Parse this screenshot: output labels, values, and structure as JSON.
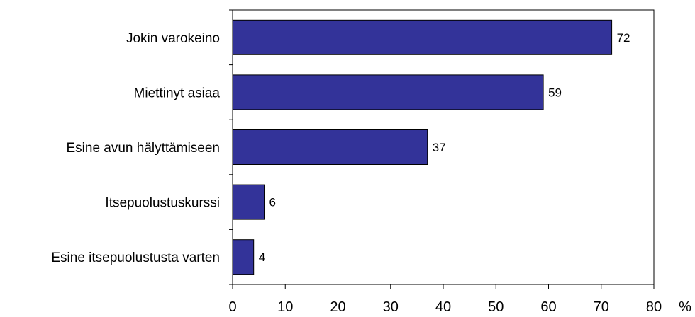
{
  "chart_data": {
    "type": "bar",
    "orientation": "horizontal",
    "categories": [
      "Jokin varokeino",
      "Miettinyt asiaa",
      "Esine avun hälyttämiseen",
      "Itsepuolustuskurssi",
      "Esine itsepuolustusta varten"
    ],
    "values": [
      72,
      59,
      37,
      6,
      4
    ],
    "value_labels": [
      "72",
      "59",
      "37",
      "6",
      "4"
    ],
    "xlim": [
      0,
      80
    ],
    "x_ticks": [
      0,
      10,
      20,
      30,
      40,
      50,
      60,
      70,
      80
    ],
    "x_tick_labels": [
      "0",
      "10",
      "20",
      "30",
      "40",
      "50",
      "60",
      "70",
      "80"
    ],
    "x_unit": "%",
    "grid": false,
    "legend": "none",
    "colors": {
      "bar_fill": "#333399",
      "bar_stroke": "#000000",
      "axis": "#000000"
    }
  }
}
